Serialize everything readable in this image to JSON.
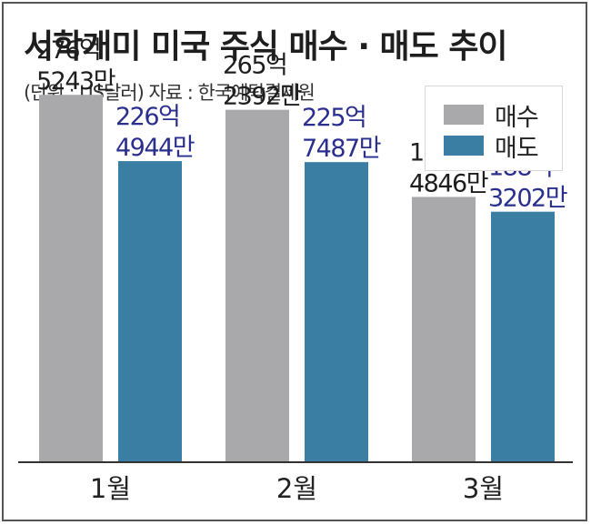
{
  "chart_data": {
    "type": "bar",
    "title": "서학개미 미국 주식 매수 · 매도 추이",
    "subtitle": "(단위 : US달러)  자료 : 한국예탁결제원",
    "categories": [
      "1월",
      "2월",
      "3월"
    ],
    "series": [
      {
        "name": "매수",
        "color": "#a9a9ab",
        "values": [
          27652430000,
          26523920000,
          19948460000
        ],
        "labels": [
          [
            "276억",
            "5243만"
          ],
          [
            "265억",
            "2392만"
          ],
          [
            "199억",
            "4846만"
          ]
        ],
        "label_color": "#1e1e1e"
      },
      {
        "name": "매도",
        "color": "#3a7ea4",
        "values": [
          22649440000,
          22574870000,
          18832020000
        ],
        "labels": [
          [
            "226억",
            "4944만"
          ],
          [
            "225억",
            "7487만"
          ],
          [
            "188억",
            "3202만"
          ]
        ],
        "label_color": "#2a2e8c"
      }
    ],
    "ylim": [
      0,
      30000000000
    ],
    "legend_position": "top-right",
    "grid": false
  }
}
